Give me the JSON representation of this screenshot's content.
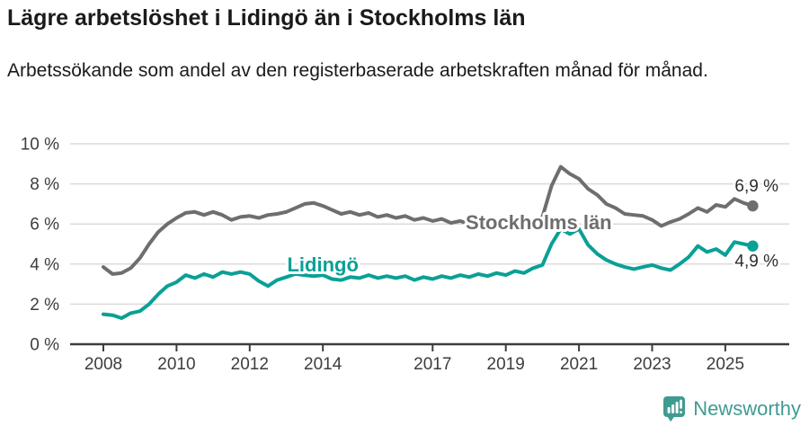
{
  "chart_data": {
    "type": "line",
    "title": "Lägre arbetslöshet i Lidingö än i Stockholms län",
    "subtitle": "Arbetssökande som andel av den registerbaserade arbetskraften månad för månad.",
    "unit": "%",
    "xlabel": "",
    "ylabel": "",
    "ylim": [
      0,
      10
    ],
    "x_domain": [
      2008,
      2025.75
    ],
    "grid": "horizontal",
    "legend_position": "inline-labels",
    "y_ticks": [
      {
        "value": 0,
        "label": "0 %"
      },
      {
        "value": 2,
        "label": "2 %"
      },
      {
        "value": 4,
        "label": "4 %"
      },
      {
        "value": 6,
        "label": "6 %"
      },
      {
        "value": 8,
        "label": "8 %"
      },
      {
        "value": 10,
        "label": "10 %"
      }
    ],
    "x_ticks": [
      {
        "value": 2008,
        "label": "2008"
      },
      {
        "value": 2010,
        "label": "2010"
      },
      {
        "value": 2012,
        "label": "2012"
      },
      {
        "value": 2014,
        "label": "2014"
      },
      {
        "value": 2017,
        "label": "2017"
      },
      {
        "value": 2019,
        "label": "2019"
      },
      {
        "value": 2021,
        "label": "2021"
      },
      {
        "value": 2023,
        "label": "2023"
      },
      {
        "value": 2025,
        "label": "2025"
      }
    ],
    "x": [
      2008,
      2008.25,
      2008.5,
      2008.75,
      2009,
      2009.25,
      2009.5,
      2009.75,
      2010,
      2010.25,
      2010.5,
      2010.75,
      2011,
      2011.25,
      2011.5,
      2011.75,
      2012,
      2012.25,
      2012.5,
      2012.75,
      2013,
      2013.25,
      2013.5,
      2013.75,
      2014,
      2014.25,
      2014.5,
      2014.75,
      2015,
      2015.25,
      2015.5,
      2015.75,
      2016,
      2016.25,
      2016.5,
      2016.75,
      2017,
      2017.25,
      2017.5,
      2017.75,
      2018,
      2018.25,
      2018.5,
      2018.75,
      2019,
      2019.25,
      2019.5,
      2019.75,
      2020,
      2020.25,
      2020.5,
      2020.75,
      2021,
      2021.25,
      2021.5,
      2021.75,
      2022,
      2022.25,
      2022.5,
      2022.75,
      2023,
      2023.25,
      2023.5,
      2023.75,
      2024,
      2024.25,
      2024.5,
      2024.75,
      2025,
      2025.25,
      2025.5,
      2025.75
    ],
    "series": [
      {
        "name": "Stockholms län",
        "color": "#6e6e6e",
        "end_label": "6,9 %",
        "end_value": 6.9,
        "values": [
          3.85,
          3.5,
          3.55,
          3.8,
          4.3,
          5.0,
          5.6,
          6.0,
          6.3,
          6.55,
          6.6,
          6.45,
          6.6,
          6.45,
          6.2,
          6.35,
          6.4,
          6.3,
          6.45,
          6.5,
          6.6,
          6.8,
          7.0,
          7.05,
          6.9,
          6.7,
          6.5,
          6.6,
          6.45,
          6.55,
          6.35,
          6.45,
          6.3,
          6.4,
          6.2,
          6.3,
          6.15,
          6.25,
          6.05,
          6.15,
          6.0,
          6.1,
          6.0,
          6.1,
          6.05,
          6.15,
          6.1,
          6.2,
          6.35,
          7.9,
          8.85,
          8.5,
          8.25,
          7.75,
          7.45,
          7.0,
          6.8,
          6.5,
          6.45,
          6.4,
          6.2,
          5.9,
          6.1,
          6.25,
          6.5,
          6.8,
          6.6,
          6.95,
          6.85,
          7.25,
          7.05,
          6.9
        ]
      },
      {
        "name": "Lidingö",
        "color": "#0aa096",
        "end_label": "4,9 %",
        "end_value": 4.9,
        "values": [
          1.5,
          1.45,
          1.3,
          1.55,
          1.65,
          2.0,
          2.5,
          2.9,
          3.1,
          3.45,
          3.3,
          3.5,
          3.35,
          3.6,
          3.5,
          3.6,
          3.5,
          3.15,
          2.9,
          3.2,
          3.35,
          3.5,
          3.45,
          3.4,
          3.45,
          3.25,
          3.2,
          3.35,
          3.3,
          3.45,
          3.3,
          3.4,
          3.3,
          3.4,
          3.2,
          3.35,
          3.25,
          3.4,
          3.3,
          3.45,
          3.35,
          3.5,
          3.4,
          3.55,
          3.45,
          3.65,
          3.55,
          3.8,
          3.95,
          5.0,
          5.75,
          5.5,
          5.75,
          4.95,
          4.5,
          4.2,
          4.0,
          3.85,
          3.75,
          3.85,
          3.95,
          3.8,
          3.7,
          4.0,
          4.35,
          4.9,
          4.6,
          4.75,
          4.45,
          5.1,
          5.0,
          4.9
        ]
      }
    ],
    "series_labels": [
      {
        "text": "Stockholms län",
        "x": 2019.9,
        "y": 5.74,
        "color": "#6e6e6e"
      },
      {
        "text": "Lidingö",
        "x": 2014.0,
        "y": 3.63,
        "color": "#0aa096"
      }
    ]
  },
  "footer": {
    "brand": "Newsworthy",
    "brand_color": "#3f9b91"
  }
}
